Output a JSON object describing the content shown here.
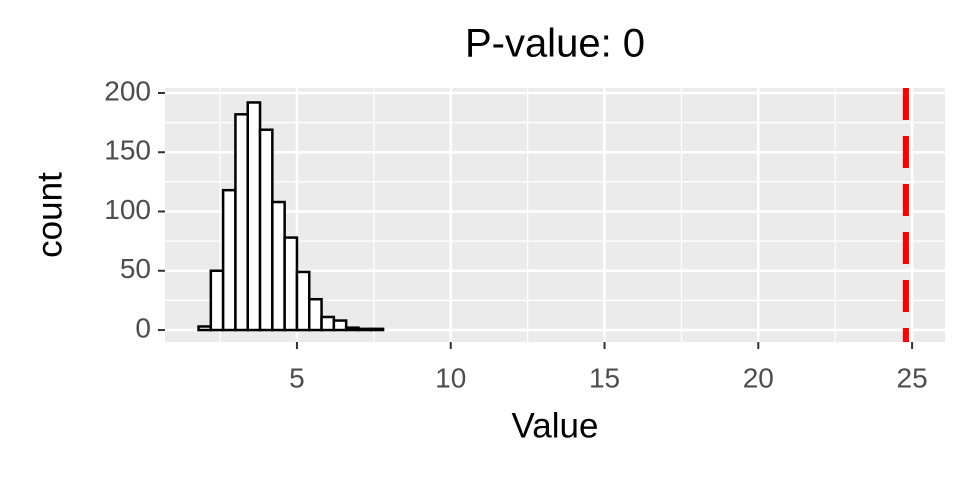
{
  "chart_data": {
    "type": "histogram",
    "title": "P-value: 0",
    "xlabel": "Value",
    "ylabel": "count",
    "bins": [
      1.8,
      2.2,
      2.6,
      3.0,
      3.4,
      3.8,
      4.2,
      4.6,
      5.0,
      5.4,
      5.8,
      6.2,
      6.6,
      7.0,
      7.4,
      7.8,
      8.2,
      8.6,
      9.0,
      9.4,
      9.8,
      10.2,
      10.6,
      11.0,
      11.4,
      11.8,
      12.2,
      12.6,
      13.0,
      13.4,
      13.8,
      14.2,
      14.6,
      15.0,
      15.4,
      15.8,
      16.2,
      16.6,
      17.0,
      17.4,
      17.8,
      18.2,
      18.6,
      19.0,
      19.4,
      19.8,
      20.2,
      20.6,
      21.0,
      21.4,
      21.8,
      22.2,
      22.6,
      23.0,
      23.4,
      23.8,
      24.2,
      24.6,
      25.0
    ],
    "values": [
      3,
      50,
      118,
      182,
      192,
      169,
      108,
      78,
      49,
      26,
      11,
      8,
      2,
      1,
      1,
      0,
      0,
      0,
      0,
      0,
      0,
      0,
      0,
      0,
      0,
      0,
      0,
      0,
      0,
      0,
      0,
      0,
      0,
      0,
      0,
      0,
      0,
      0,
      0,
      0,
      0,
      0,
      0,
      0,
      0,
      0,
      0,
      0,
      0,
      0,
      0,
      0,
      0,
      0,
      0,
      0,
      0,
      0
    ],
    "color": "#ffffff",
    "edgecolor": "#000000",
    "vline": 24.8,
    "vline_color": "#ff0000",
    "xlim": [
      0.71,
      26.07
    ],
    "ylim": [
      -10.1,
      204.2
    ],
    "xticks": [
      5,
      10,
      15,
      20,
      25
    ],
    "yticks": [
      0,
      50,
      100,
      150,
      200
    ],
    "xminor": [
      2.5,
      7.5,
      12.5,
      17.5,
      22.5
    ],
    "yminor": [
      25,
      75,
      125,
      175
    ],
    "grid": true
  }
}
